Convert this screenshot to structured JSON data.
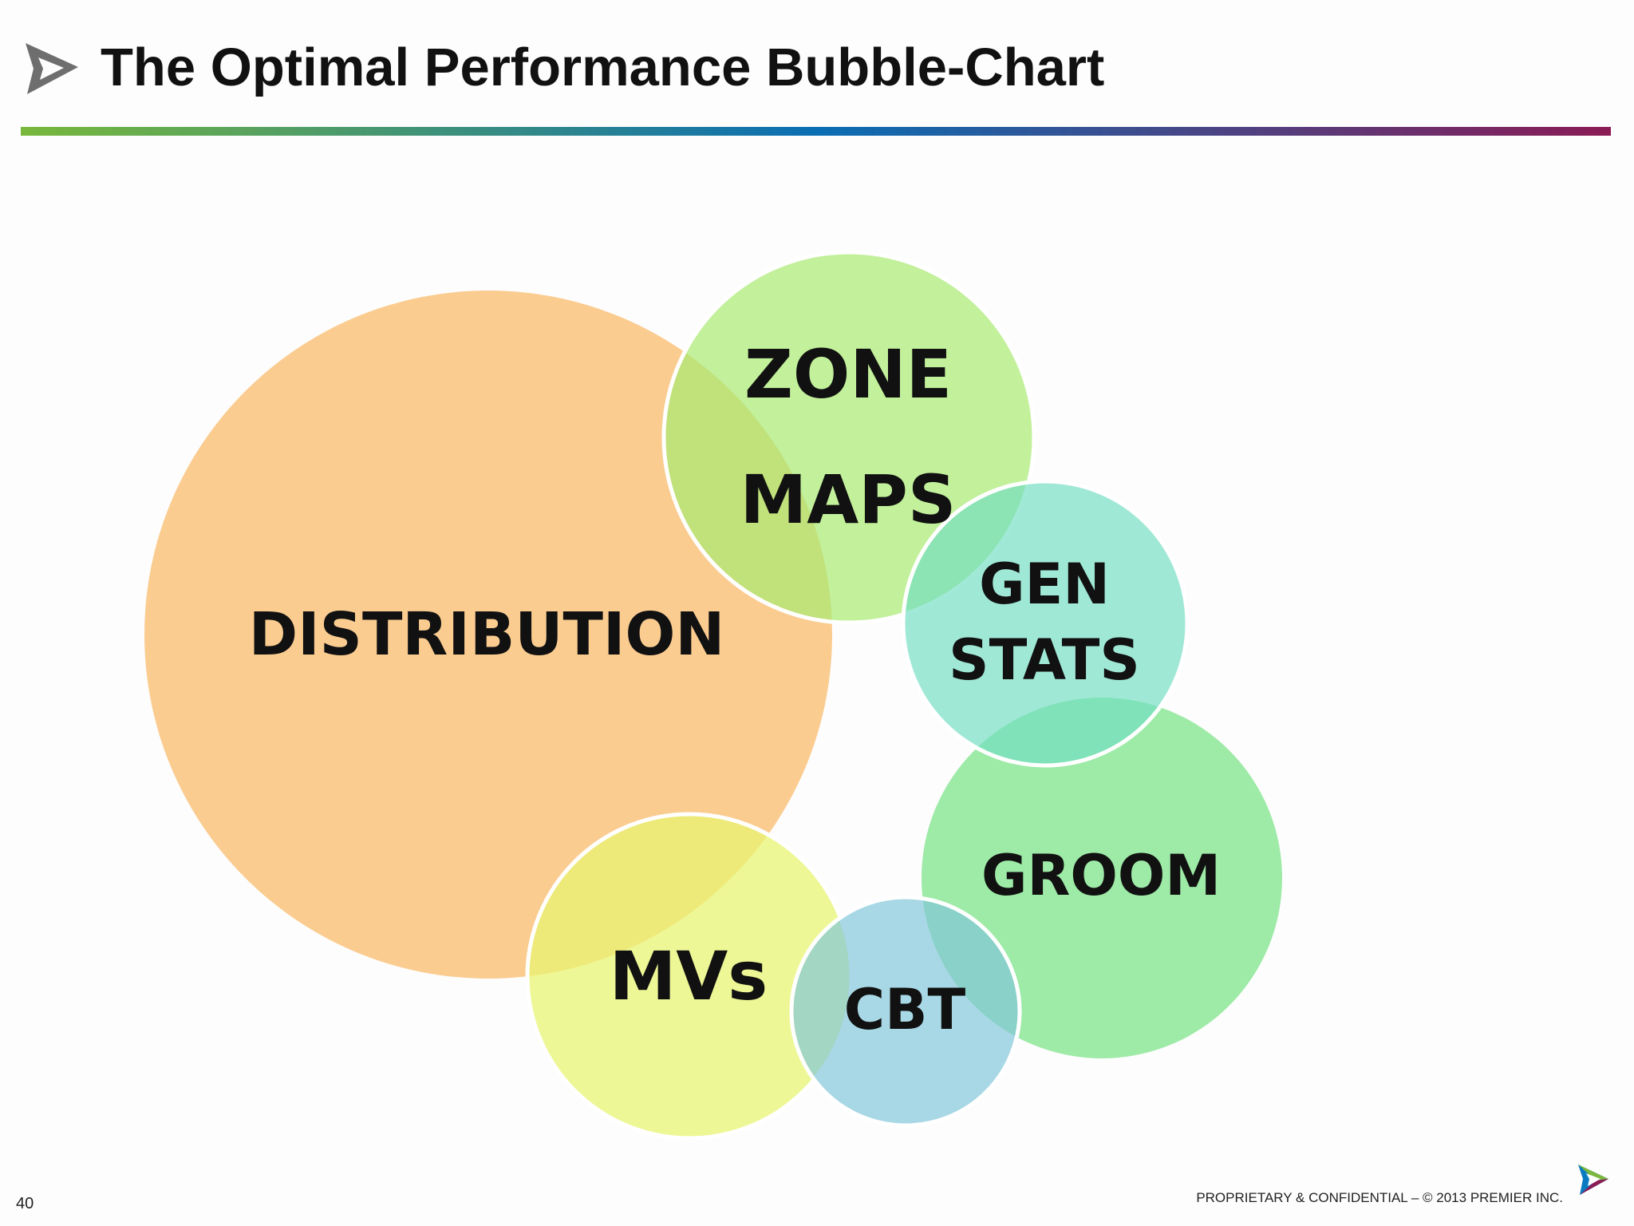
{
  "slide": {
    "title": "The Optimal Performance Bubble-Chart",
    "page_number": "40",
    "footer": "PROPRIETARY & CONFIDENTIAL – © 2013 PREMIER INC."
  },
  "colors": {
    "rule_gradient": [
      "#78b83b",
      "#0a6eb4",
      "#8b1b55"
    ],
    "distribution": "#fbc98a",
    "zone_maps": "#b9f08f",
    "gen_stats": "#a2e6d3",
    "groom": "#9ceaa6",
    "mvs": "#eef69a",
    "cbt": "#a8d5e4"
  },
  "bubbles": {
    "distribution": {
      "label_lines": [
        "DISTRIBUTION"
      ]
    },
    "zone_maps": {
      "label_lines": [
        "ZONE",
        "MAPS"
      ]
    },
    "gen_stats": {
      "label_lines": [
        "GEN",
        "STATS"
      ]
    },
    "groom": {
      "label_lines": [
        "GROOM"
      ]
    },
    "mvs": {
      "label_lines": [
        "MVs"
      ]
    },
    "cbt": {
      "label_lines": [
        "CBT"
      ]
    }
  }
}
